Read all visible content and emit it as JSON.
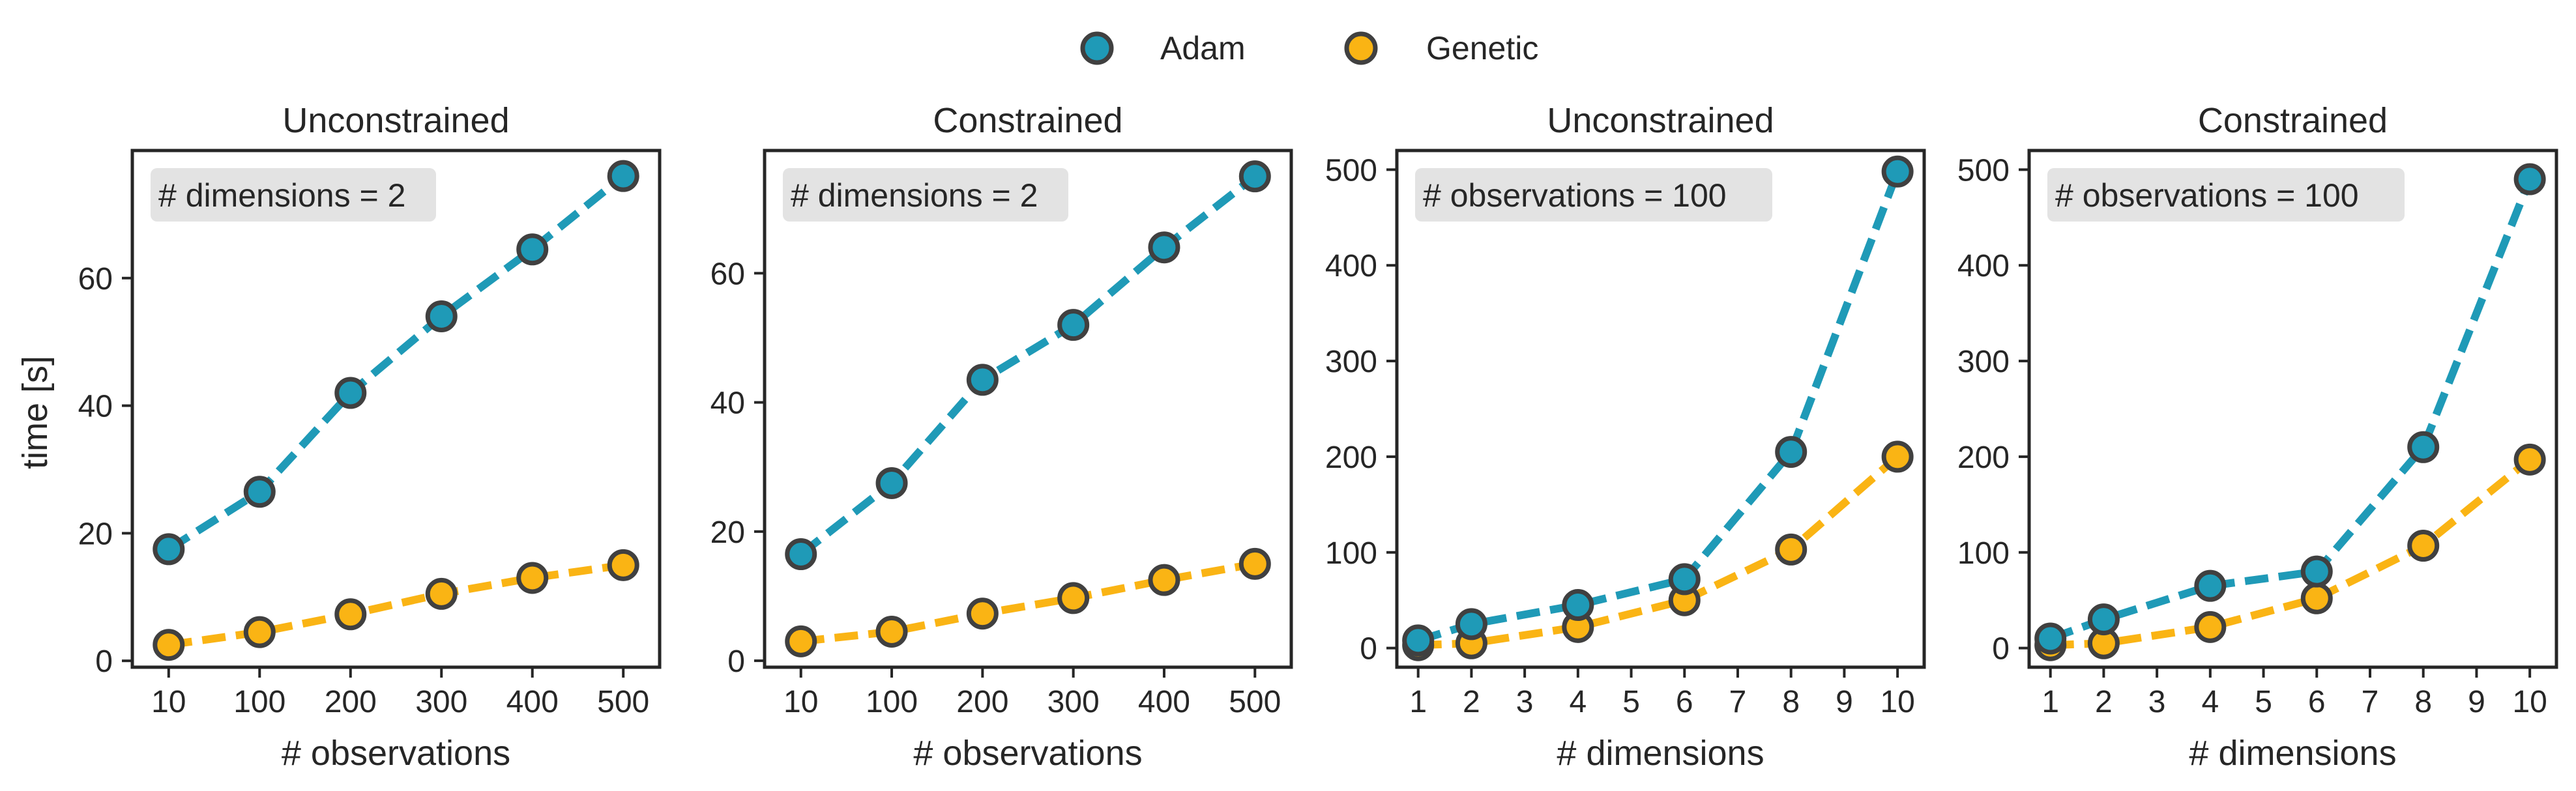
{
  "legend": {
    "items": [
      {
        "label": "Adam",
        "color": "#1f9ab7"
      },
      {
        "label": "Genetic",
        "color": "#fab414"
      }
    ],
    "placement": "top-center"
  },
  "shared_ylabel": "time [s]",
  "marker_edge_color": "#404040",
  "chart_data": [
    {
      "type": "line",
      "title": "Unconstrained",
      "annotation": "# dimensions = 2",
      "xlabel": "# observations",
      "ylabel": "time [s]",
      "x_scale": "categorical",
      "categories": [
        "10",
        "100",
        "200",
        "300",
        "400",
        "500"
      ],
      "xticks": [
        "10",
        "100",
        "200",
        "300",
        "400",
        "500"
      ],
      "ylim": [
        -1,
        80
      ],
      "yticks": [
        0,
        20,
        40,
        60
      ],
      "series": [
        {
          "name": "Adam",
          "values": [
            17.5,
            26.5,
            42,
            54,
            64.5,
            76
          ]
        },
        {
          "name": "Genetic",
          "values": [
            2.5,
            4.5,
            7.3,
            10.5,
            13,
            15
          ]
        }
      ]
    },
    {
      "type": "line",
      "title": "Constrained",
      "annotation": "# dimensions = 2",
      "xlabel": "# observations",
      "ylabel": "",
      "x_scale": "categorical",
      "categories": [
        "10",
        "100",
        "200",
        "300",
        "400",
        "500"
      ],
      "xticks": [
        "10",
        "100",
        "200",
        "300",
        "400",
        "500"
      ],
      "ylim": [
        -1,
        79
      ],
      "yticks": [
        0,
        20,
        40,
        60
      ],
      "series": [
        {
          "name": "Adam",
          "values": [
            16.5,
            27.5,
            43.5,
            52,
            64,
            75
          ]
        },
        {
          "name": "Genetic",
          "values": [
            3,
            4.5,
            7.3,
            9.7,
            12.5,
            15
          ]
        }
      ]
    },
    {
      "type": "line",
      "title": "Unconstrained",
      "annotation": "# observations = 100",
      "xlabel": "# dimensions",
      "ylabel": "",
      "x_scale": "linear",
      "xlim": [
        0.6,
        10.5
      ],
      "xticks": [
        "1",
        "2",
        "3",
        "4",
        "5",
        "6",
        "7",
        "8",
        "9",
        "10"
      ],
      "ylim": [
        -20,
        520
      ],
      "yticks": [
        0,
        100,
        200,
        300,
        400,
        500
      ],
      "x": [
        1,
        2,
        4,
        6,
        8,
        10
      ],
      "series": [
        {
          "name": "Adam",
          "values": [
            8,
            25,
            45,
            72,
            205,
            498
          ]
        },
        {
          "name": "Genetic",
          "values": [
            3,
            5,
            22,
            50,
            103,
            200
          ]
        }
      ]
    },
    {
      "type": "line",
      "title": "Constrained",
      "annotation": "# observations = 100",
      "xlabel": "# dimensions",
      "ylabel": "",
      "x_scale": "linear",
      "xlim": [
        0.6,
        10.5
      ],
      "xticks": [
        "1",
        "2",
        "3",
        "4",
        "5",
        "6",
        "7",
        "8",
        "9",
        "10"
      ],
      "ylim": [
        -20,
        520
      ],
      "yticks": [
        0,
        100,
        200,
        300,
        400,
        500
      ],
      "x": [
        1,
        2,
        4,
        6,
        8,
        10
      ],
      "series": [
        {
          "name": "Adam",
          "values": [
            10,
            30,
            65,
            80,
            210,
            490
          ]
        },
        {
          "name": "Genetic",
          "values": [
            3,
            5,
            22,
            52,
            107,
            197
          ]
        }
      ]
    }
  ]
}
